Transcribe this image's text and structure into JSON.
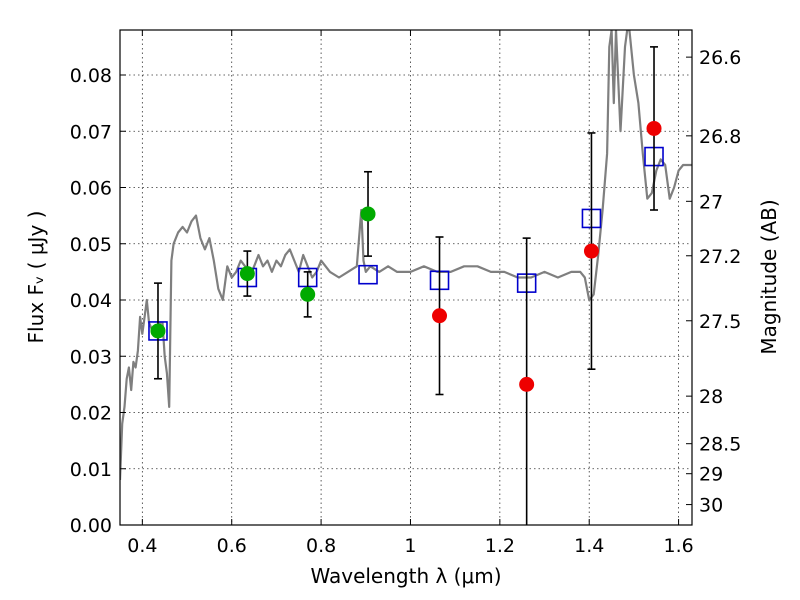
{
  "chart_data": {
    "type": "scatter",
    "xlabel": "Wavelength  λ (μm)",
    "ylabel": "Flux  Fᵥ  ( μJy )",
    "y2label": "Magnitude (AB)",
    "xlim": [
      0.35,
      1.63
    ],
    "ylim": [
      0.0,
      0.088
    ],
    "x_ticks": [
      0.4,
      0.6,
      0.8,
      1.0,
      1.2,
      1.4,
      1.6
    ],
    "x_tick_labels": [
      "0.4",
      "0.6",
      "0.8",
      "1",
      "1.2",
      "1.4",
      "1.6"
    ],
    "y_ticks": [
      0.0,
      0.01,
      0.02,
      0.03,
      0.04,
      0.05,
      0.06,
      0.07,
      0.08
    ],
    "y_tick_labels": [
      "0.00",
      "0.01",
      "0.02",
      "0.03",
      "0.04",
      "0.05",
      "0.06",
      "0.07",
      "0.08"
    ],
    "y2_ticks": [
      {
        "label": "26.6",
        "mag": 26.6
      },
      {
        "label": "26.8",
        "mag": 26.8
      },
      {
        "label": "27",
        "mag": 27.0
      },
      {
        "label": "27.2",
        "mag": 27.2
      },
      {
        "label": "27.5",
        "mag": 27.5
      },
      {
        "label": "28",
        "mag": 28.0
      },
      {
        "label": "28.5",
        "mag": 28.5
      },
      {
        "label": "29",
        "mag": 29.0
      },
      {
        "label": "30",
        "mag": 30.0
      }
    ],
    "grid": true,
    "colors": {
      "sed": "#7f7f7f",
      "green": "#00aa00",
      "red": "#ee0000",
      "model": "#0000cc"
    },
    "sed_curve": {
      "x": [
        0.35,
        0.355,
        0.36,
        0.365,
        0.37,
        0.375,
        0.38,
        0.385,
        0.39,
        0.395,
        0.4,
        0.405,
        0.41,
        0.415,
        0.42,
        0.425,
        0.43,
        0.435,
        0.44,
        0.445,
        0.45,
        0.455,
        0.46,
        0.465,
        0.47,
        0.48,
        0.49,
        0.5,
        0.51,
        0.52,
        0.53,
        0.54,
        0.55,
        0.56,
        0.57,
        0.58,
        0.59,
        0.6,
        0.61,
        0.62,
        0.63,
        0.64,
        0.65,
        0.66,
        0.67,
        0.68,
        0.69,
        0.7,
        0.71,
        0.72,
        0.73,
        0.74,
        0.75,
        0.76,
        0.77,
        0.78,
        0.79,
        0.8,
        0.82,
        0.84,
        0.86,
        0.88,
        0.89,
        0.895,
        0.9,
        0.91,
        0.93,
        0.95,
        0.97,
        1.0,
        1.03,
        1.06,
        1.09,
        1.12,
        1.15,
        1.18,
        1.21,
        1.24,
        1.27,
        1.3,
        1.33,
        1.36,
        1.38,
        1.39,
        1.4,
        1.41,
        1.42,
        1.43,
        1.44,
        1.445,
        1.45,
        1.455,
        1.46,
        1.47,
        1.48,
        1.485,
        1.49,
        1.5,
        1.51,
        1.52,
        1.53,
        1.54,
        1.55,
        1.56,
        1.57,
        1.58,
        1.59,
        1.6,
        1.61,
        1.62,
        1.63
      ],
      "y": [
        0.008,
        0.018,
        0.021,
        0.026,
        0.028,
        0.024,
        0.029,
        0.028,
        0.031,
        0.037,
        0.034,
        0.037,
        0.04,
        0.036,
        0.035,
        0.034,
        0.035,
        0.035,
        0.036,
        0.036,
        0.03,
        0.027,
        0.021,
        0.047,
        0.05,
        0.052,
        0.053,
        0.052,
        0.054,
        0.055,
        0.051,
        0.049,
        0.051,
        0.047,
        0.042,
        0.04,
        0.046,
        0.044,
        0.045,
        0.047,
        0.046,
        0.044,
        0.046,
        0.048,
        0.046,
        0.047,
        0.045,
        0.047,
        0.046,
        0.048,
        0.049,
        0.047,
        0.045,
        0.048,
        0.046,
        0.044,
        0.045,
        0.047,
        0.045,
        0.044,
        0.045,
        0.046,
        0.056,
        0.047,
        0.045,
        0.046,
        0.045,
        0.046,
        0.045,
        0.045,
        0.046,
        0.045,
        0.045,
        0.046,
        0.046,
        0.045,
        0.045,
        0.044,
        0.044,
        0.045,
        0.044,
        0.045,
        0.045,
        0.044,
        0.04,
        0.041,
        0.048,
        0.056,
        0.066,
        0.085,
        0.088,
        0.075,
        0.088,
        0.07,
        0.085,
        0.088,
        0.088,
        0.08,
        0.075,
        0.066,
        0.058,
        0.059,
        0.063,
        0.065,
        0.064,
        0.058,
        0.06,
        0.063,
        0.064,
        0.064,
        0.064
      ]
    },
    "series": [
      {
        "marker": "square",
        "color": "#0000cc",
        "x": [
          0.435,
          0.635,
          0.77,
          0.905,
          1.065,
          1.26,
          1.405,
          1.545
        ],
        "y": [
          0.0345,
          0.044,
          0.044,
          0.0445,
          0.0435,
          0.043,
          0.0545,
          0.0655
        ]
      },
      {
        "marker": "circle",
        "color": "#00aa00",
        "x": [
          0.435,
          0.635,
          0.77,
          0.905
        ],
        "y": [
          0.0345,
          0.0447,
          0.041,
          0.0553
        ],
        "yerr_low": [
          0.0085,
          0.004,
          0.004,
          0.0075
        ],
        "yerr_high": [
          0.0085,
          0.004,
          0.004,
          0.0075
        ]
      },
      {
        "marker": "circle",
        "color": "#ee0000",
        "x": [
          1.065,
          1.26,
          1.405,
          1.545
        ],
        "y": [
          0.0372,
          0.025,
          0.0487,
          0.0705
        ],
        "yerr_low": [
          0.014,
          0.027,
          0.021,
          0.0145
        ],
        "yerr_high": [
          0.014,
          0.026,
          0.021,
          0.0145
        ]
      }
    ]
  }
}
